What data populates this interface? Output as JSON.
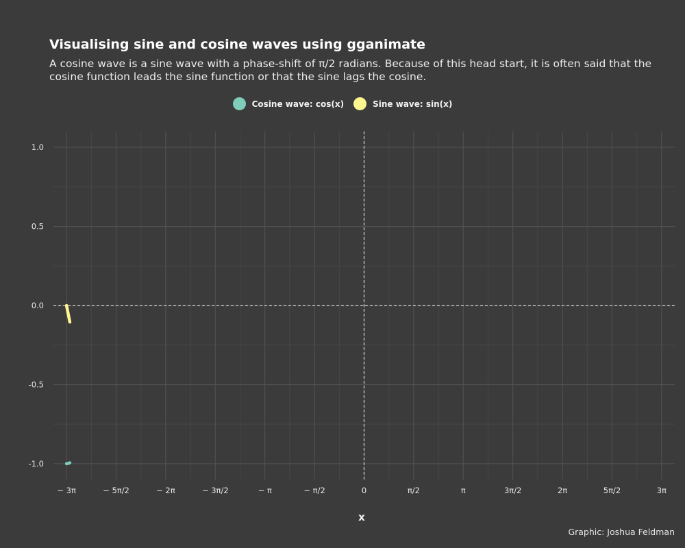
{
  "header": {
    "title": "Visualising sine and cosine waves using gganimate",
    "subtitle": "A cosine wave is a sine wave with a phase-shift of π/2 radians. Because of this head start, it is often said that the cosine function leads the sine function or that the sine lags the cosine."
  },
  "legend": {
    "items": [
      {
        "label": "Cosine wave: cos(x)",
        "color": "#7fcdbb"
      },
      {
        "label": "Sine wave: sin(x)",
        "color": "#fff68f"
      }
    ]
  },
  "caption": "Graphic: Joshua Feldman",
  "chart_data": {
    "type": "line",
    "title": "Visualising sine and cosine waves using gganimate",
    "xlabel": "x",
    "ylabel": "",
    "xlim": [
      -9.84,
      9.84
    ],
    "ylim": [
      -1.1,
      1.1
    ],
    "x_ticks": [
      {
        "value": -9.4248,
        "label": "− 3π"
      },
      {
        "value": -7.854,
        "label": "− 5π/2"
      },
      {
        "value": -6.2832,
        "label": "− 2π"
      },
      {
        "value": -4.7124,
        "label": "− 3π/2"
      },
      {
        "value": -3.1416,
        "label": "− π"
      },
      {
        "value": -1.5708,
        "label": "− π/2"
      },
      {
        "value": 0,
        "label": "0"
      },
      {
        "value": 1.5708,
        "label": "π/2"
      },
      {
        "value": 3.1416,
        "label": "π"
      },
      {
        "value": 4.7124,
        "label": "3π/2"
      },
      {
        "value": 6.2832,
        "label": "2π"
      },
      {
        "value": 7.854,
        "label": "5π/2"
      },
      {
        "value": 9.4248,
        "label": "3π"
      }
    ],
    "y_ticks": [
      {
        "value": 1.0,
        "label": "1.0"
      },
      {
        "value": 0.5,
        "label": "0.5"
      },
      {
        "value": 0.0,
        "label": "0.0"
      },
      {
        "value": -0.5,
        "label": "-0.5"
      },
      {
        "value": -1.0,
        "label": "-1.0"
      }
    ],
    "grid": true,
    "legend_position": "top",
    "reference_lines": {
      "x": 0,
      "y": 0
    },
    "series": [
      {
        "name": "Cosine wave: cos(x)",
        "color": "#7fcdbb",
        "x": [
          -9.4248,
          -9.37,
          -9.32
        ],
        "y": [
          -1.0,
          -0.9985,
          -0.9941
        ]
      },
      {
        "name": "Sine wave: sin(x)",
        "color": "#fff68f",
        "x": [
          -9.4248,
          -9.37,
          -9.32
        ],
        "y": [
          0.0,
          -0.0548,
          -0.1046
        ]
      }
    ]
  }
}
